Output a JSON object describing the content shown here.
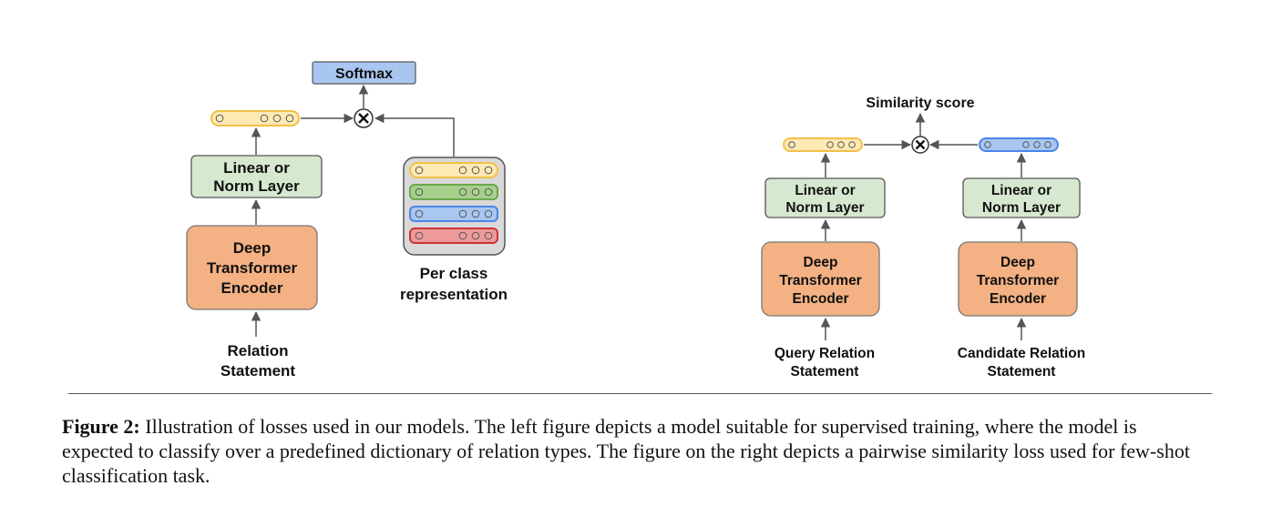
{
  "left": {
    "softmax": "Softmax",
    "linear": [
      "Linear or",
      "Norm Layer"
    ],
    "encoder": [
      "Deep",
      "Transformer",
      "Encoder"
    ],
    "input": [
      "Relation",
      "Statement"
    ],
    "per_class": [
      "Per class",
      "representation"
    ]
  },
  "right": {
    "similarity": "Similarity score",
    "linear_q": [
      "Linear or",
      "Norm Layer"
    ],
    "linear_c": [
      "Linear or",
      "Norm Layer"
    ],
    "encoder_q": [
      "Deep",
      "Transformer",
      "Encoder"
    ],
    "encoder_c": [
      "Deep",
      "Transformer",
      "Encoder"
    ],
    "input_q": [
      "Query Relation",
      "Statement"
    ],
    "input_c": [
      "Candidate Relation",
      "Statement"
    ]
  },
  "caption": {
    "label": "Figure 2:",
    "text": "Illustration of losses used in our models. The left figure depicts a model suitable for supervised training, where the model is expected to classify over a predefined dictionary of relation types. The figure on the right depicts a pairwise similarity loss used for few-shot classification task."
  },
  "colors": {
    "yellow": "#fde9b3",
    "yellow_stroke": "#f2c04a",
    "green": "#d6e8cf",
    "green_stroke": "#6aa84f",
    "blue": "#a9c6f0",
    "blue_stroke": "#4a86e8",
    "red": "#ef9a9a",
    "red_stroke": "#cc3333",
    "orange": "#f4b183",
    "orange_stroke": "#c7753b"
  }
}
